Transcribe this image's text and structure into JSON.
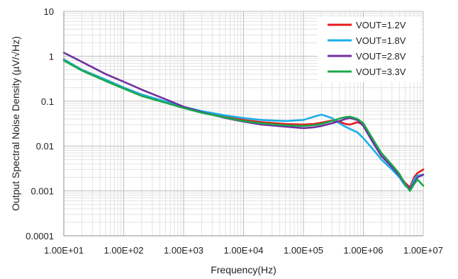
{
  "chart_data": {
    "type": "line",
    "title": "",
    "xlabel": "Frequency(Hz)",
    "ylabel": "Output Spectral Noise Density (µV/√Hz)",
    "x_scale": "log",
    "y_scale": "log",
    "xlim": [
      10,
      10000000
    ],
    "ylim": [
      0.0001,
      10
    ],
    "x_tick_labels": [
      "1.00E+01",
      "1.00E+02",
      "1.00E+03",
      "1.00E+04",
      "1.00E+05",
      "1.00E+06",
      "1.00E+07"
    ],
    "y_tick_labels": [
      "10",
      "1",
      "0.1",
      "0.01",
      "0.001",
      "0.0001"
    ],
    "grid": true,
    "legend_position": "top-right",
    "series": [
      {
        "name": "VOUT=1.2V",
        "color": "#e8191c",
        "x": [
          10,
          20,
          50,
          100,
          200,
          500,
          1000,
          2000,
          5000,
          10000,
          20000,
          50000,
          100000,
          150000,
          200000,
          300000,
          400000,
          500000,
          600000,
          800000,
          1000000,
          1500000,
          2000000,
          3000000,
          4000000,
          5000000,
          6000000,
          7000000,
          8000000,
          10000000
        ],
        "values": [
          0.85,
          0.5,
          0.3,
          0.2,
          0.14,
          0.095,
          0.072,
          0.056,
          0.044,
          0.038,
          0.034,
          0.031,
          0.03,
          0.031,
          0.033,
          0.037,
          0.035,
          0.031,
          0.03,
          0.034,
          0.03,
          0.012,
          0.006,
          0.0035,
          0.0022,
          0.0015,
          0.0012,
          0.002,
          0.0025,
          0.003
        ]
      },
      {
        "name": "VOUT=1.8V",
        "color": "#1aaee6",
        "x": [
          10,
          20,
          50,
          100,
          200,
          500,
          1000,
          2000,
          5000,
          10000,
          20000,
          50000,
          100000,
          150000,
          200000,
          300000,
          400000,
          500000,
          600000,
          800000,
          1000000,
          1500000,
          2000000,
          3000000,
          4000000,
          5000000,
          6000000,
          7000000,
          8000000,
          10000000
        ],
        "values": [
          0.85,
          0.5,
          0.3,
          0.2,
          0.14,
          0.098,
          0.075,
          0.06,
          0.048,
          0.042,
          0.038,
          0.036,
          0.038,
          0.045,
          0.05,
          0.042,
          0.032,
          0.027,
          0.024,
          0.02,
          0.015,
          0.008,
          0.005,
          0.003,
          0.002,
          0.0013,
          0.0011,
          0.0018,
          0.0022,
          0.0023
        ]
      },
      {
        "name": "VOUT=2.8V",
        "color": "#7030a0",
        "x": [
          10,
          20,
          50,
          100,
          200,
          500,
          1000,
          2000,
          5000,
          10000,
          20000,
          50000,
          100000,
          150000,
          200000,
          300000,
          400000,
          500000,
          600000,
          800000,
          1000000,
          1500000,
          2000000,
          3000000,
          4000000,
          5000000,
          6000000,
          7000000,
          8000000,
          10000000
        ],
        "values": [
          1.2,
          0.75,
          0.4,
          0.27,
          0.18,
          0.11,
          0.075,
          0.057,
          0.042,
          0.035,
          0.03,
          0.027,
          0.025,
          0.026,
          0.028,
          0.032,
          0.036,
          0.04,
          0.042,
          0.038,
          0.028,
          0.011,
          0.006,
          0.0034,
          0.0022,
          0.0014,
          0.0011,
          0.0015,
          0.002,
          0.0023
        ]
      },
      {
        "name": "VOUT=3.3V",
        "color": "#1aa84a",
        "x": [
          10,
          20,
          50,
          100,
          200,
          500,
          1000,
          2000,
          5000,
          10000,
          20000,
          50000,
          100000,
          150000,
          200000,
          300000,
          400000,
          500000,
          600000,
          800000,
          1000000,
          1500000,
          2000000,
          3000000,
          4000000,
          5000000,
          6000000,
          7000000,
          8000000,
          10000000
        ],
        "values": [
          0.8,
          0.48,
          0.28,
          0.19,
          0.13,
          0.092,
          0.07,
          0.055,
          0.043,
          0.036,
          0.032,
          0.029,
          0.028,
          0.029,
          0.031,
          0.036,
          0.041,
          0.044,
          0.045,
          0.04,
          0.032,
          0.013,
          0.007,
          0.0038,
          0.0024,
          0.0014,
          0.001,
          0.0014,
          0.0018,
          0.0013
        ]
      }
    ]
  }
}
